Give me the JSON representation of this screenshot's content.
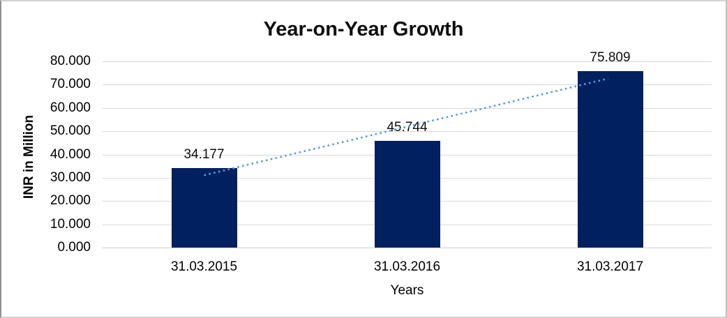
{
  "chart_data": {
    "type": "bar",
    "title": "Year-on-Year Growth",
    "xlabel": "Years",
    "ylabel": "INR in Million",
    "categories": [
      "31.03.2015",
      "31.03.2016",
      "31.03.2017"
    ],
    "series": [
      {
        "name": "INR in Million",
        "values": [
          34.177,
          45.744,
          75.809
        ]
      }
    ],
    "data_labels": [
      "34.177",
      "45.744",
      "75.809"
    ],
    "ylim": [
      0,
      80
    ],
    "ytick_step": 10,
    "ytick_labels": [
      "0.000",
      "10.000",
      "20.000",
      "30.000",
      "40.000",
      "50.000",
      "60.000",
      "70.000",
      "80.000"
    ],
    "grid": true,
    "legend_position": "none",
    "bar_color": "#002060",
    "gridline_color": "#d9d9d9",
    "axis_line_color": "#cfcfcf",
    "text_color": "#000000",
    "background_color": "#ffffff",
    "trendline": {
      "type": "linear",
      "style": "dotted",
      "color": "#5b9bd5",
      "start_value": 31.1,
      "end_value": 72.6
    }
  }
}
